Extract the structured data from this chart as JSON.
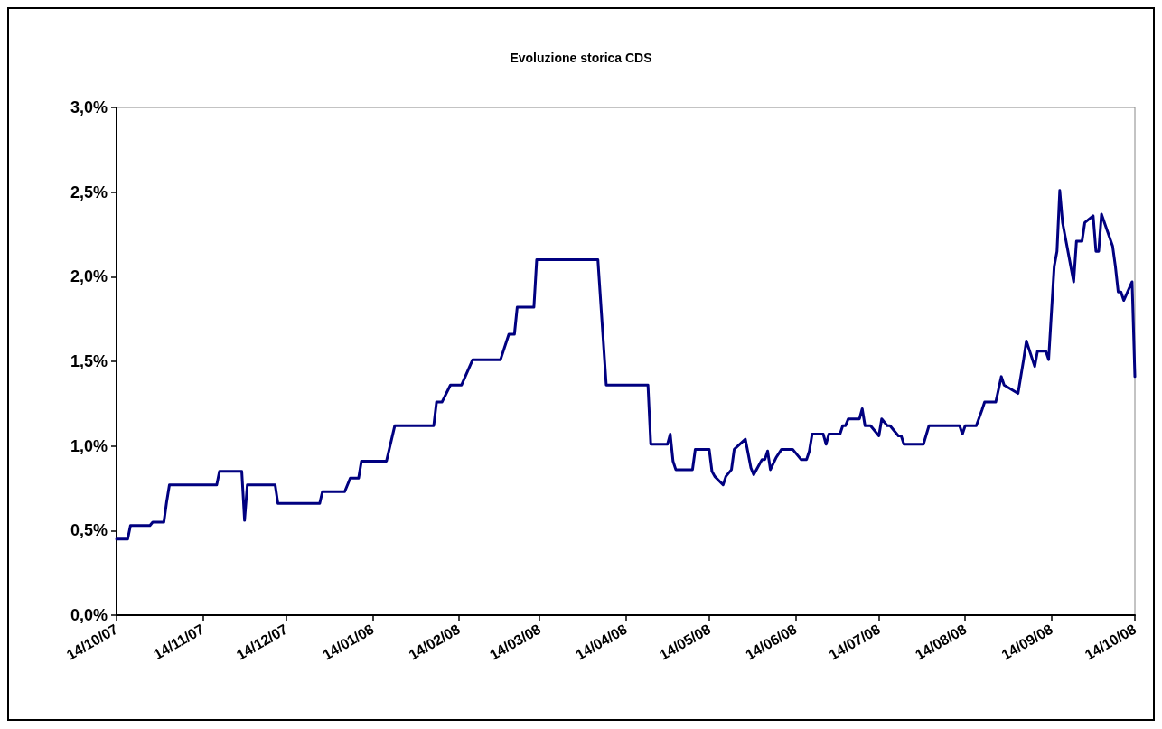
{
  "chart_data": {
    "type": "line",
    "title": "Evoluzione storica CDS",
    "x": [
      "2007-10-14",
      "2007-10-18",
      "2007-10-19",
      "2007-10-26",
      "2007-10-27",
      "2007-10-31",
      "2007-11-01",
      "2007-11-02",
      "2007-11-19",
      "2007-11-20",
      "2007-11-28",
      "2007-11-29",
      "2007-11-30",
      "2007-12-10",
      "2007-12-11",
      "2007-12-26",
      "2007-12-27",
      "2008-01-04",
      "2008-01-06",
      "2008-01-09",
      "2008-01-10",
      "2008-01-19",
      "2008-01-22",
      "2008-02-05",
      "2008-02-06",
      "2008-02-08",
      "2008-02-11",
      "2008-02-15",
      "2008-02-19",
      "2008-02-29",
      "2008-03-03",
      "2008-03-05",
      "2008-03-06",
      "2008-03-12",
      "2008-03-13",
      "2008-04-04",
      "2008-04-07",
      "2008-04-22",
      "2008-04-23",
      "2008-04-29",
      "2008-04-30",
      "2008-05-01",
      "2008-05-02",
      "2008-05-08",
      "2008-05-09",
      "2008-05-14",
      "2008-05-15",
      "2008-05-16",
      "2008-05-19",
      "2008-05-20",
      "2008-05-22",
      "2008-05-23",
      "2008-05-27",
      "2008-05-29",
      "2008-05-30",
      "2008-06-02",
      "2008-06-03",
      "2008-06-04",
      "2008-06-05",
      "2008-06-07",
      "2008-06-09",
      "2008-06-13",
      "2008-06-16",
      "2008-06-18",
      "2008-06-19",
      "2008-06-20",
      "2008-06-24",
      "2008-06-25",
      "2008-06-26",
      "2008-06-30",
      "2008-07-01",
      "2008-07-02",
      "2008-07-03",
      "2008-07-07",
      "2008-07-08",
      "2008-07-09",
      "2008-07-11",
      "2008-07-14",
      "2008-07-15",
      "2008-07-17",
      "2008-07-18",
      "2008-07-21",
      "2008-07-22",
      "2008-07-23",
      "2008-07-30",
      "2008-08-01",
      "2008-08-12",
      "2008-08-13",
      "2008-08-14",
      "2008-08-18",
      "2008-08-20",
      "2008-08-21",
      "2008-08-25",
      "2008-08-27",
      "2008-08-28",
      "2008-09-02",
      "2008-09-04",
      "2008-09-05",
      "2008-09-08",
      "2008-09-09",
      "2008-09-12",
      "2008-09-13",
      "2008-09-15",
      "2008-09-16",
      "2008-09-17",
      "2008-09-18",
      "2008-09-22",
      "2008-09-23",
      "2008-09-25",
      "2008-09-26",
      "2008-09-29",
      "2008-09-30",
      "2008-10-01",
      "2008-10-02",
      "2008-10-06",
      "2008-10-07",
      "2008-10-08",
      "2008-10-09",
      "2008-10-10",
      "2008-10-13",
      "2008-10-14"
    ],
    "series": [
      {
        "color": "#000080",
        "values": [
          0.45,
          0.45,
          0.53,
          0.53,
          0.55,
          0.55,
          0.67,
          0.77,
          0.77,
          0.85,
          0.85,
          0.56,
          0.77,
          0.77,
          0.66,
          0.66,
          0.73,
          0.73,
          0.81,
          0.81,
          0.91,
          0.91,
          1.12,
          1.12,
          1.26,
          1.26,
          1.36,
          1.36,
          1.51,
          1.51,
          1.66,
          1.66,
          1.82,
          1.82,
          2.1,
          2.1,
          1.36,
          1.36,
          1.01,
          1.01,
          1.07,
          0.91,
          0.86,
          0.86,
          0.98,
          0.98,
          0.85,
          0.82,
          0.77,
          0.82,
          0.86,
          0.98,
          1.04,
          0.87,
          0.83,
          0.92,
          0.92,
          0.97,
          0.86,
          0.93,
          0.98,
          0.98,
          0.92,
          0.92,
          0.97,
          1.07,
          1.07,
          1.01,
          1.07,
          1.07,
          1.12,
          1.12,
          1.16,
          1.16,
          1.22,
          1.12,
          1.12,
          1.06,
          1.16,
          1.12,
          1.12,
          1.06,
          1.06,
          1.01,
          1.01,
          1.12,
          1.12,
          1.07,
          1.12,
          1.12,
          1.21,
          1.26,
          1.26,
          1.41,
          1.36,
          1.31,
          1.51,
          1.62,
          1.47,
          1.56,
          1.56,
          1.51,
          2.06,
          2.15,
          2.51,
          2.32,
          1.97,
          2.21,
          2.21,
          2.32,
          2.36,
          2.15,
          2.15,
          2.37,
          2.18,
          2.06,
          1.91,
          1.91,
          1.86,
          1.97,
          1.41
        ]
      }
    ],
    "xlim": [
      "2007-10-14",
      "2008-10-14"
    ],
    "xticks": [
      {
        "value": "2007-10-14",
        "label": "14/10/07"
      },
      {
        "value": "2007-11-14",
        "label": "14/11/07"
      },
      {
        "value": "2007-12-14",
        "label": "14/12/07"
      },
      {
        "value": "2008-01-14",
        "label": "14/01/08"
      },
      {
        "value": "2008-02-14",
        "label": "14/02/08"
      },
      {
        "value": "2008-03-14",
        "label": "14/03/08"
      },
      {
        "value": "2008-04-14",
        "label": "14/04/08"
      },
      {
        "value": "2008-05-14",
        "label": "14/05/08"
      },
      {
        "value": "2008-06-14",
        "label": "14/06/08"
      },
      {
        "value": "2008-07-14",
        "label": "14/07/08"
      },
      {
        "value": "2008-08-14",
        "label": "14/08/08"
      },
      {
        "value": "2008-09-14",
        "label": "14/09/08"
      },
      {
        "value": "2008-10-14",
        "label": "14/10/08"
      }
    ],
    "ylim": [
      0,
      3
    ],
    "yticks": [
      {
        "value": 0,
        "label": "0,0%"
      },
      {
        "value": 0.5,
        "label": "0,5%"
      },
      {
        "value": 1,
        "label": "1,0%"
      },
      {
        "value": 1.5,
        "label": "1,5%"
      },
      {
        "value": 2,
        "label": "2,0%"
      },
      {
        "value": 2.5,
        "label": "2,5%"
      },
      {
        "value": 3,
        "label": "3,0%"
      }
    ],
    "grid": false,
    "marker": "none",
    "line_style": "solid"
  }
}
